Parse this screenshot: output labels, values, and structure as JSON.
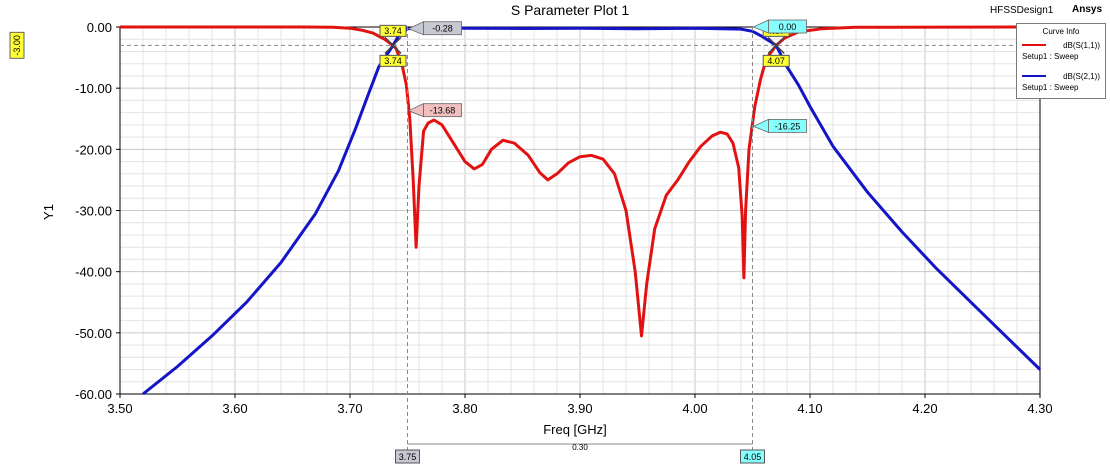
{
  "chart_data": {
    "type": "line",
    "title": "S Parameter Plot 1",
    "xlabel": "Freq [GHz]",
    "ylabel": "Y1",
    "xlim": [
      3.5,
      4.3
    ],
    "ylim": [
      -60,
      0
    ],
    "x_ticks": [
      "3.50",
      "3.60",
      "3.70",
      "3.80",
      "3.90",
      "4.00",
      "4.10",
      "4.20",
      "4.30"
    ],
    "y_ticks": [
      "0.00",
      "-10.00",
      "-20.00",
      "-30.00",
      "-40.00",
      "-50.00",
      "-60.00"
    ],
    "grid": true,
    "legend_position": "top-right",
    "series": [
      {
        "name": "dB(S(1,1))",
        "setup": "Setup1 : Sweep",
        "color": "#e31212",
        "points": [
          [
            3.5,
            0
          ],
          [
            3.66,
            0
          ],
          [
            3.685,
            -0.05
          ],
          [
            3.7,
            -0.2
          ],
          [
            3.71,
            -0.5
          ],
          [
            3.72,
            -1.0
          ],
          [
            3.73,
            -2.0
          ],
          [
            3.7374,
            -3.0
          ],
          [
            3.74,
            -3.5
          ],
          [
            3.745,
            -6.0
          ],
          [
            3.749,
            -9.5
          ],
          [
            3.752,
            -15.0
          ],
          [
            3.755,
            -25.0
          ],
          [
            3.7575,
            -36.0
          ],
          [
            3.76,
            -26.0
          ],
          [
            3.764,
            -17.0
          ],
          [
            3.768,
            -15.7
          ],
          [
            3.773,
            -15.2
          ],
          [
            3.78,
            -16.0
          ],
          [
            3.79,
            -19.0
          ],
          [
            3.8,
            -22.0
          ],
          [
            3.808,
            -23.2
          ],
          [
            3.815,
            -22.5
          ],
          [
            3.823,
            -20.0
          ],
          [
            3.833,
            -18.5
          ],
          [
            3.843,
            -19.0
          ],
          [
            3.855,
            -21.0
          ],
          [
            3.865,
            -23.8
          ],
          [
            3.872,
            -25.0
          ],
          [
            3.88,
            -24.0
          ],
          [
            3.89,
            -22.2
          ],
          [
            3.9,
            -21.2
          ],
          [
            3.91,
            -21.0
          ],
          [
            3.92,
            -21.6
          ],
          [
            3.93,
            -24.0
          ],
          [
            3.94,
            -30.0
          ],
          [
            3.948,
            -40.0
          ],
          [
            3.9535,
            -50.5
          ],
          [
            3.958,
            -42.0
          ],
          [
            3.965,
            -33.0
          ],
          [
            3.975,
            -27.5
          ],
          [
            3.985,
            -25.0
          ],
          [
            3.995,
            -22.0
          ],
          [
            4.005,
            -19.5
          ],
          [
            4.015,
            -17.8
          ],
          [
            4.022,
            -17.2
          ],
          [
            4.028,
            -17.5
          ],
          [
            4.033,
            -19.0
          ],
          [
            4.038,
            -23.0
          ],
          [
            4.041,
            -31.0
          ],
          [
            4.0425,
            -41.0
          ],
          [
            4.044,
            -30.0
          ],
          [
            4.047,
            -20.0
          ],
          [
            4.052,
            -13.0
          ],
          [
            4.057,
            -8.5
          ],
          [
            4.062,
            -5.2
          ],
          [
            4.0706,
            -3.0
          ],
          [
            4.078,
            -1.8
          ],
          [
            4.09,
            -0.8
          ],
          [
            4.11,
            -0.3
          ],
          [
            4.14,
            -0.05
          ],
          [
            4.3,
            0
          ]
        ]
      },
      {
        "name": "dB(S(2,1))",
        "setup": "Setup1 : Sweep",
        "color": "#1414c8",
        "points": [
          [
            3.52,
            -60.0
          ],
          [
            3.55,
            -55.5
          ],
          [
            3.58,
            -50.5
          ],
          [
            3.61,
            -45.0
          ],
          [
            3.64,
            -38.5
          ],
          [
            3.67,
            -30.5
          ],
          [
            3.69,
            -23.5
          ],
          [
            3.705,
            -16.5
          ],
          [
            3.715,
            -11.5
          ],
          [
            3.725,
            -6.5
          ],
          [
            3.7374,
            -3.0
          ],
          [
            3.742,
            -1.5
          ],
          [
            3.748,
            -0.6
          ],
          [
            3.75,
            -0.28
          ],
          [
            3.77,
            -0.15
          ],
          [
            3.8,
            -0.2
          ],
          [
            3.85,
            -0.25
          ],
          [
            3.9,
            -0.2
          ],
          [
            3.95,
            -0.3
          ],
          [
            4.0,
            -0.2
          ],
          [
            4.04,
            -0.35
          ],
          [
            4.05,
            -0.7
          ],
          [
            4.058,
            -1.5
          ],
          [
            4.0706,
            -3.0
          ],
          [
            4.08,
            -6.5
          ],
          [
            4.09,
            -9.5
          ],
          [
            4.1,
            -13.0
          ],
          [
            4.12,
            -19.5
          ],
          [
            4.15,
            -27.0
          ],
          [
            4.18,
            -33.5
          ],
          [
            4.21,
            -39.5
          ],
          [
            4.24,
            -45.0
          ],
          [
            4.27,
            -50.5
          ],
          [
            4.3,
            -56.0
          ]
        ]
      }
    ],
    "markers": {
      "hline_label": "-3.00",
      "hline_value": -3.0,
      "crossings": [
        {
          "label": "3.74",
          "x": 3.7374,
          "y": -3.0
        },
        {
          "label": "4.07",
          "x": 4.0706,
          "y": -3.0
        }
      ],
      "crossing_labels_upper": [
        "3.74",
        "4.07"
      ],
      "crossing_labels_lower": [
        "3.74",
        "4.07"
      ],
      "value_labels": [
        {
          "text": "-0.28",
          "x": 3.75,
          "y": -0.28,
          "style": "gray"
        },
        {
          "text": "0.00",
          "x": 4.05,
          "y": 0.0,
          "style": "cyan"
        },
        {
          "text": "-13.68",
          "x": 3.75,
          "y": -13.68,
          "style": "red"
        },
        {
          "text": "-16.25",
          "x": 4.05,
          "y": -16.25,
          "style": "cyan"
        }
      ],
      "vlines": [
        {
          "label": "3.75",
          "x": 3.75,
          "style": "gray"
        },
        {
          "label": "4.05",
          "x": 4.05,
          "style": "cyan"
        }
      ],
      "delta_label": "0.30"
    }
  },
  "curve_info": {
    "title": "Curve Info",
    "items": [
      {
        "name": "dB(S(1,1))",
        "sub": "Setup1 : Sweep",
        "color": "#e31212"
      },
      {
        "name": "dB(S(2,1))",
        "sub": "Setup1 : Sweep",
        "color": "#1414c8"
      }
    ]
  },
  "app_label": "HFSSDesign1",
  "vendor_label": "Ansys",
  "colors": {
    "grid": "#c8c8c8",
    "marker_yellow": "#ffff33",
    "marker_cyan": "#88ffff",
    "marker_gray": "#c8c8d2",
    "marker_red": "#f0c0c0"
  }
}
